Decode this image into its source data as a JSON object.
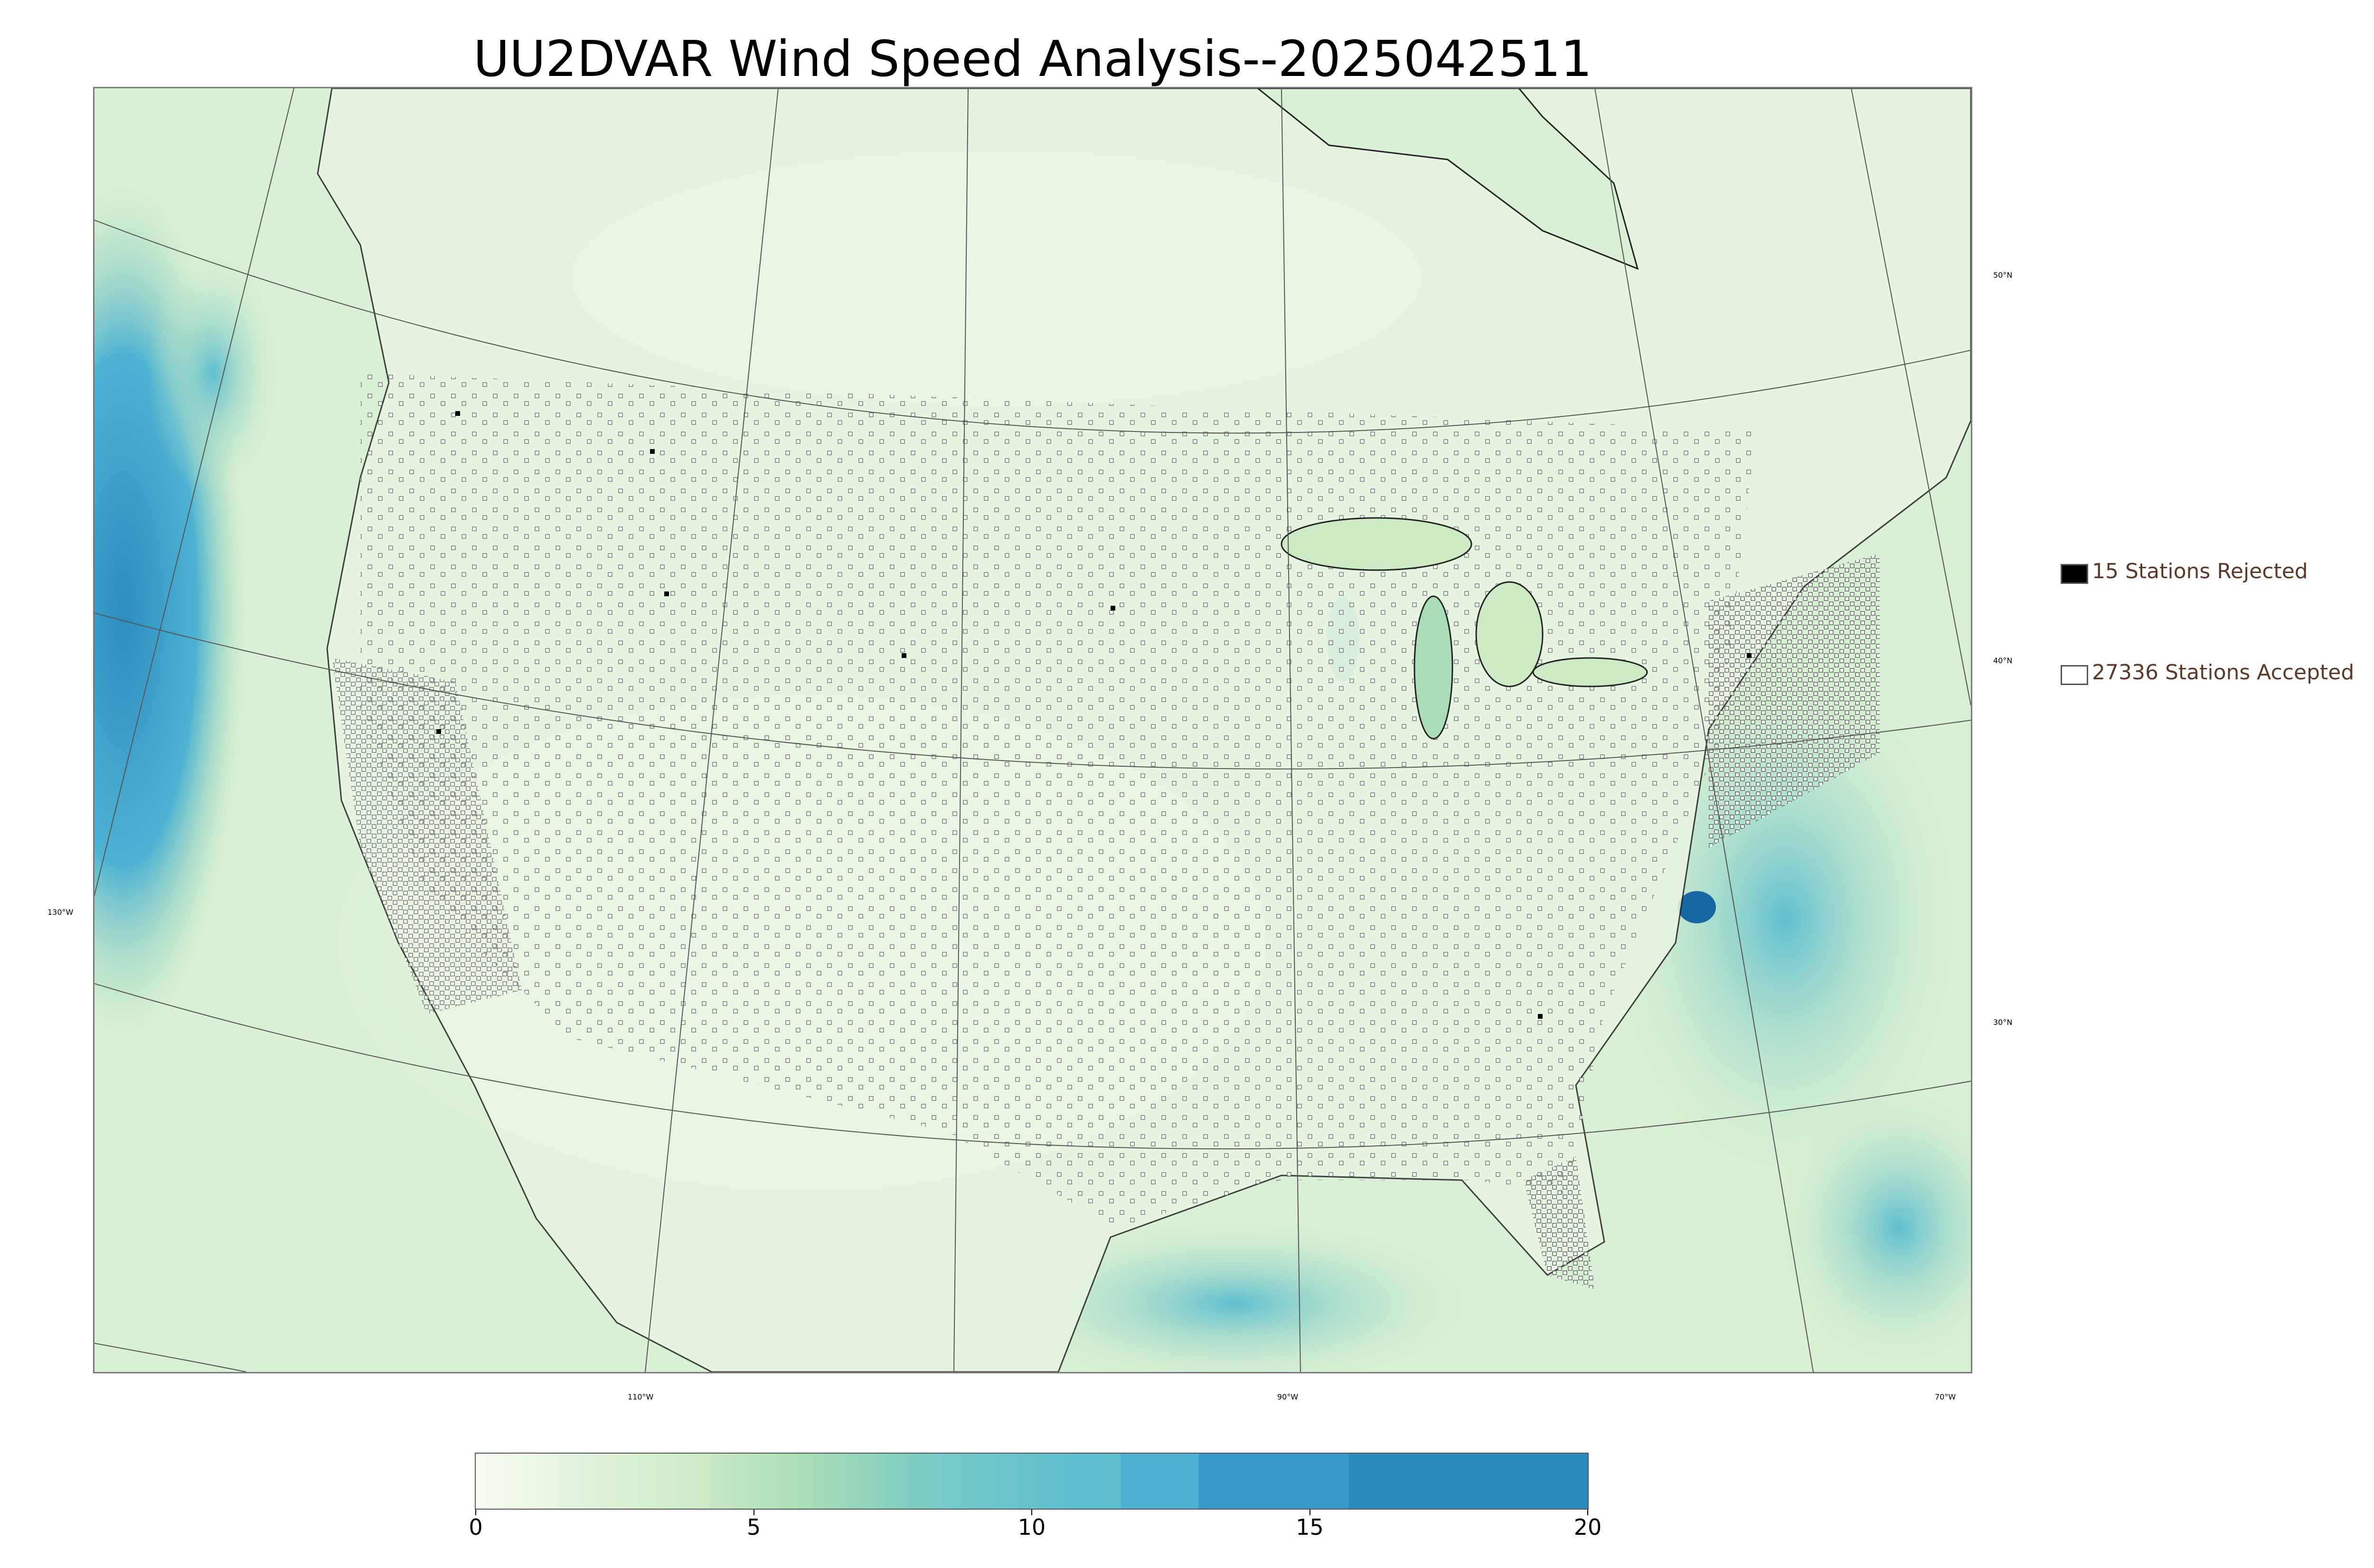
{
  "title": "UU2DVAR Wind Speed Analysis--2025042511",
  "map": {
    "lon_labels": [
      "130°W",
      "110°W",
      "90°W",
      "70°W"
    ],
    "lat_labels": [
      "50°N",
      "40°N",
      "30°N"
    ]
  },
  "legend": {
    "rejected": {
      "label": "15 Stations Rejected",
      "color": "#000000"
    },
    "accepted": {
      "label": "27336 Stations Accepted",
      "color": "#ffffff"
    }
  },
  "colorbar": {
    "min": 0,
    "max": 20,
    "tick_labels": [
      "0",
      "5",
      "10",
      "15",
      "20"
    ],
    "colors": [
      "#f7fcf0",
      "#e0f3db",
      "#ccebc5",
      "#a8ddb5",
      "#7bccc4",
      "#5fbfcf",
      "#4eb3d3",
      "#3a9bc8",
      "#2b8cbe",
      "#1667a2"
    ],
    "boundaries": [
      0,
      2,
      4,
      6,
      8,
      10.7,
      11.6,
      13,
      15.7,
      20
    ]
  }
}
